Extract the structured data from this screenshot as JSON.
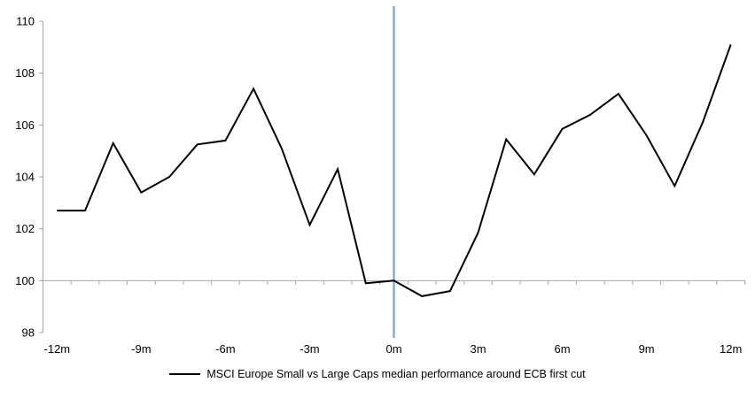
{
  "chart_data": {
    "type": "line",
    "x": [
      -12,
      -11,
      -10,
      -9,
      -8,
      -7,
      -6,
      -5,
      -4,
      -3,
      -2,
      -1,
      0,
      1,
      2,
      3,
      4,
      5,
      6,
      7,
      8,
      9,
      10,
      11,
      12
    ],
    "series": [
      {
        "name": "MSCI Europe Small vs Large Caps median performance around ECB first cut",
        "color": "#000000",
        "values": [
          102.7,
          102.7,
          105.3,
          103.4,
          104.0,
          105.25,
          105.4,
          107.4,
          105.1,
          102.15,
          104.3,
          99.9,
          100.0,
          99.4,
          99.6,
          101.85,
          105.45,
          104.1,
          105.85,
          106.4,
          107.2,
          105.6,
          103.65,
          106.1,
          109.1
        ]
      }
    ],
    "title": "",
    "xlabel": "",
    "ylabel": "",
    "ylim": [
      98,
      110
    ],
    "yticks": [
      98,
      100,
      102,
      104,
      106,
      108,
      110
    ],
    "xticks": [
      -12,
      -9,
      -6,
      -3,
      0,
      3,
      6,
      9,
      12
    ],
    "xtick_labels": [
      "-12m",
      "-9m",
      "-6m",
      "-3m",
      "0m",
      "3m",
      "6m",
      "9m",
      "12m"
    ],
    "baseline_value": 100,
    "event_line": {
      "x": 0,
      "color": "#7BA4D0"
    },
    "axis_color": "#A6A6A6",
    "grid": "off",
    "legend_position": "bottom"
  }
}
